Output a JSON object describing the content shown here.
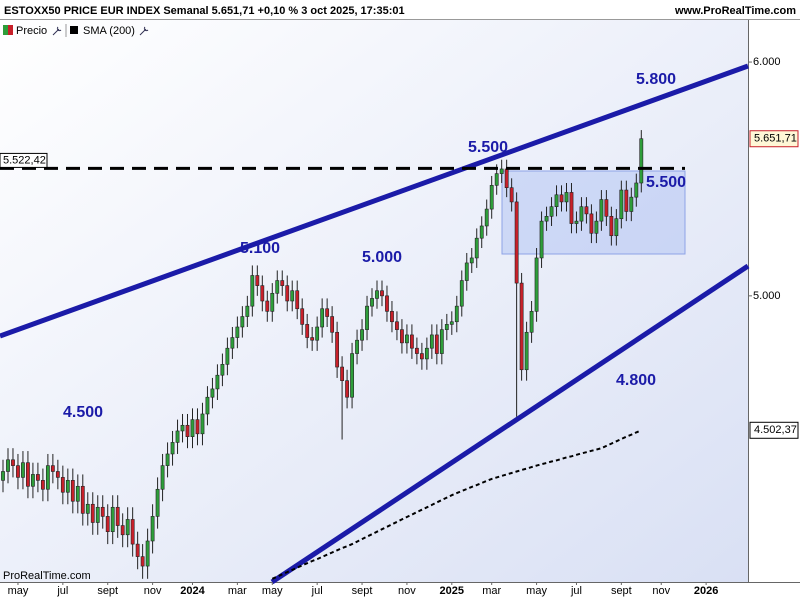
{
  "header": {
    "title": "ESTOXX50 PRICE EUR INDEX Semanal 5.651,71 +0,10 % 3 oct 2025, 17:35:01",
    "site": "www.ProRealTime.com"
  },
  "chart_data": {
    "type": "candlestick",
    "categories": [
      null,
      null,
      null,
      "may",
      null,
      null,
      null,
      null,
      null,
      null,
      null,
      null,
      "jul",
      null,
      null,
      null,
      null,
      null,
      null,
      null,
      null,
      "sept",
      null,
      null,
      null,
      null,
      null,
      null,
      null,
      null,
      "nov",
      null,
      null,
      null,
      null,
      null,
      null,
      null,
      "2024",
      null,
      null,
      null,
      null,
      null,
      null,
      null,
      null,
      "mar",
      null,
      null,
      null,
      null,
      null,
      null,
      "may",
      null,
      null,
      null,
      null,
      null,
      null,
      null,
      null,
      "jul",
      null,
      null,
      null,
      null,
      null,
      null,
      null,
      null,
      "sept",
      null,
      null,
      null,
      null,
      null,
      null,
      null,
      null,
      "nov",
      null,
      null,
      null,
      null,
      null,
      null,
      null,
      null,
      "2025",
      null,
      null,
      null,
      null,
      null,
      null,
      null,
      "mar",
      null,
      null,
      null,
      null,
      null,
      null,
      null,
      null,
      "may",
      null,
      null,
      null,
      null,
      null,
      null,
      null,
      "jul",
      null,
      null,
      null,
      null,
      null,
      null,
      null,
      null,
      "sept",
      null,
      null,
      null,
      null,
      null,
      null,
      null,
      "nov",
      null,
      null,
      null,
      null,
      null,
      null,
      null,
      null,
      "2026",
      null,
      null,
      null,
      null,
      null,
      null,
      null,
      null
    ],
    "series": [
      {
        "name": "Precio",
        "up_color": "#2e9e3a",
        "down_color": "#c8202a",
        "last_label": "5.651,71",
        "open": [
          4330,
          4360,
          4400,
          4380,
          4340,
          4390,
          4310,
          4350,
          4330,
          4300,
          4380,
          4360,
          4340,
          4290,
          4330,
          4260,
          4310,
          4220,
          4250,
          4190,
          4240,
          4210,
          4160,
          4240,
          4180,
          4150,
          4200,
          4120,
          4080,
          4050,
          4130,
          4210,
          4300,
          4380,
          4420,
          4460,
          4500,
          4520,
          4480,
          4540,
          4490,
          4560,
          4620,
          4650,
          4700,
          4740,
          4800,
          4840,
          4880,
          4920,
          4960,
          5080,
          5040,
          4980,
          4940,
          5010,
          5060,
          5040,
          4980,
          5020,
          4950,
          4890,
          4840,
          4830,
          4880,
          4950,
          4920,
          4860,
          4730,
          4680,
          4620,
          4780,
          4830,
          4870,
          4960,
          4990,
          5020,
          5000,
          4940,
          4900,
          4870,
          4820,
          4850,
          4800,
          4780,
          4760,
          4800,
          4850,
          4780,
          4870,
          4890,
          4900,
          4960,
          5060,
          5130,
          5150,
          5230,
          5280,
          5350,
          5450,
          5500,
          5520,
          5440,
          5380,
          5050,
          4720,
          4860,
          4940,
          5150,
          5300,
          5320,
          5360,
          5410,
          5380,
          5420,
          5290,
          5300,
          5360,
          5330,
          5250,
          5300,
          5390,
          5320,
          5240,
          5310,
          5430,
          5340,
          5400,
          5460,
          null,
          null,
          null,
          null,
          null,
          null,
          null,
          null,
          null,
          null,
          null,
          null,
          null,
          null,
          null,
          null,
          null,
          null,
          null,
          null,
          null
        ],
        "high": [
          4400,
          4440,
          4440,
          4420,
          4430,
          4430,
          4390,
          4390,
          4370,
          4420,
          4420,
          4400,
          4380,
          4370,
          4370,
          4350,
          4350,
          4290,
          4290,
          4280,
          4280,
          4250,
          4280,
          4280,
          4220,
          4240,
          4240,
          4160,
          4120,
          4170,
          4250,
          4340,
          4420,
          4460,
          4500,
          4540,
          4560,
          4560,
          4580,
          4580,
          4600,
          4660,
          4690,
          4740,
          4780,
          4840,
          4880,
          4920,
          4960,
          5000,
          5120,
          5120,
          5080,
          5020,
          5050,
          5100,
          5100,
          5080,
          5060,
          5060,
          4990,
          4930,
          4880,
          4920,
          4990,
          4990,
          4960,
          4900,
          4770,
          4720,
          4820,
          4870,
          4910,
          5000,
          5030,
          5060,
          5060,
          5040,
          4980,
          4940,
          4910,
          4890,
          4890,
          4840,
          4820,
          4840,
          4890,
          4890,
          4910,
          4930,
          4940,
          5000,
          5100,
          5170,
          5190,
          5270,
          5320,
          5390,
          5490,
          5540,
          5560,
          5560,
          5480,
          5420,
          5090,
          4900,
          4980,
          5190,
          5340,
          5360,
          5400,
          5450,
          5450,
          5460,
          5460,
          5340,
          5400,
          5400,
          5370,
          5340,
          5430,
          5430,
          5360,
          5350,
          5470,
          5470,
          5440,
          5500,
          5690,
          null,
          null,
          null,
          null,
          null,
          null,
          null,
          null,
          null,
          null,
          null,
          null,
          null,
          null,
          null,
          null,
          null,
          null,
          null,
          null,
          null
        ],
        "low": [
          4290,
          4320,
          4340,
          4300,
          4300,
          4270,
          4270,
          4290,
          4260,
          4260,
          4320,
          4300,
          4250,
          4250,
          4220,
          4220,
          4180,
          4180,
          4150,
          4150,
          4170,
          4120,
          4120,
          4140,
          4110,
          4110,
          4080,
          4040,
          4010,
          4010,
          4090,
          4170,
          4260,
          4340,
          4380,
          4420,
          4460,
          4440,
          4440,
          4450,
          4450,
          4520,
          4580,
          4610,
          4660,
          4700,
          4760,
          4800,
          4840,
          4880,
          4920,
          5000,
          4940,
          4900,
          4900,
          4970,
          5000,
          4940,
          4940,
          4910,
          4850,
          4800,
          4790,
          4790,
          4840,
          4880,
          4820,
          4690,
          4470,
          4580,
          4580,
          4740,
          4790,
          4830,
          4920,
          4950,
          4960,
          4900,
          4860,
          4830,
          4780,
          4780,
          4760,
          4740,
          4720,
          4720,
          4760,
          4740,
          4740,
          4830,
          4850,
          4860,
          4920,
          5020,
          5090,
          5110,
          5190,
          5240,
          5310,
          5410,
          5460,
          5400,
          5340,
          4550,
          4680,
          4680,
          4820,
          4900,
          5110,
          5260,
          5280,
          5320,
          5340,
          5340,
          5250,
          5250,
          5260,
          5290,
          5210,
          5210,
          5260,
          5280,
          5200,
          5200,
          5270,
          5300,
          5300,
          5360,
          5420,
          null,
          null,
          null,
          null,
          null,
          null,
          null,
          null,
          null,
          null,
          null,
          null,
          null,
          null,
          null,
          null,
          null,
          null,
          null,
          null,
          null
        ],
        "close": [
          4360,
          4400,
          4380,
          4340,
          4390,
          4310,
          4350,
          4330,
          4300,
          4380,
          4360,
          4340,
          4290,
          4330,
          4260,
          4310,
          4220,
          4250,
          4190,
          4240,
          4210,
          4160,
          4240,
          4180,
          4150,
          4200,
          4120,
          4080,
          4050,
          4130,
          4210,
          4300,
          4380,
          4420,
          4460,
          4500,
          4520,
          4480,
          4540,
          4490,
          4560,
          4620,
          4650,
          4700,
          4740,
          4800,
          4840,
          4880,
          4920,
          4960,
          5080,
          5040,
          4980,
          4940,
          5010,
          5060,
          5040,
          4980,
          5020,
          4950,
          4890,
          4840,
          4830,
          4880,
          4950,
          4920,
          4860,
          4730,
          4680,
          4620,
          4780,
          4830,
          4870,
          4960,
          4990,
          5020,
          5000,
          4940,
          4900,
          4870,
          4820,
          4850,
          4800,
          4780,
          4760,
          4800,
          4850,
          4780,
          4870,
          4890,
          4900,
          4960,
          5060,
          5130,
          5150,
          5230,
          5280,
          5350,
          5450,
          5500,
          5520,
          5440,
          5380,
          5050,
          4720,
          4860,
          4940,
          5150,
          5300,
          5320,
          5360,
          5410,
          5380,
          5420,
          5290,
          5300,
          5360,
          5330,
          5250,
          5300,
          5390,
          5320,
          5240,
          5310,
          5430,
          5340,
          5400,
          5460,
          5651.71,
          null,
          null,
          null,
          null,
          null,
          null,
          null,
          null,
          null,
          null,
          null,
          null,
          null,
          null,
          null,
          null,
          null,
          null,
          null,
          null,
          null
        ]
      },
      {
        "name": "SMA (200)",
        "color": "#000000",
        "last_label": "4.502,37",
        "values": [
          null,
          null,
          null,
          null,
          null,
          null,
          null,
          null,
          null,
          null,
          null,
          null,
          null,
          null,
          null,
          null,
          null,
          null,
          null,
          null,
          null,
          null,
          null,
          null,
          null,
          null,
          null,
          null,
          null,
          null,
          null,
          null,
          null,
          null,
          null,
          null,
          null,
          null,
          null,
          null,
          null,
          null,
          null,
          null,
          null,
          null,
          null,
          null,
          null,
          null,
          null,
          null,
          null,
          null,
          4010,
          4017,
          4024,
          4031,
          4038,
          4045,
          4052,
          4059,
          4066,
          4072,
          4079,
          4086,
          4093,
          4100,
          4107,
          4113,
          4120,
          4128,
          4136,
          4144,
          4152,
          4160,
          4168,
          4176,
          4184,
          4192,
          4200,
          4208,
          4216,
          4224,
          4232,
          4240,
          4248,
          4256,
          4264,
          4272,
          4280,
          4287,
          4294,
          4301,
          4308,
          4314,
          4321,
          4328,
          4335,
          4340,
          4345,
          4350,
          4355,
          4360,
          4365,
          4370,
          4375,
          4380,
          4385,
          4389,
          4394,
          4398,
          4403,
          4408,
          4412,
          4417,
          4422,
          4426,
          4431,
          4435,
          4440,
          4448,
          4456,
          4464,
          4472,
          4480,
          4487,
          4495,
          4502.37,
          null,
          null,
          null,
          null,
          null,
          null,
          null,
          null,
          null,
          null,
          null,
          null,
          null,
          null,
          null,
          null,
          null,
          null,
          null,
          null,
          null
        ]
      }
    ],
    "ylim": [
      4000,
      6200
    ],
    "log_scale": true,
    "yticks": [
      {
        "value": 5000,
        "label": "5.000"
      },
      {
        "value": 6000,
        "label": "6.000"
      }
    ],
    "hline": {
      "value": 5522.42,
      "label": "5.522,42"
    },
    "annotations": [
      "5.800",
      "5.500",
      "5.500",
      "5.100",
      "5.000",
      "4.500",
      "4.800"
    ],
    "watermark": "ProRealTime.com"
  }
}
